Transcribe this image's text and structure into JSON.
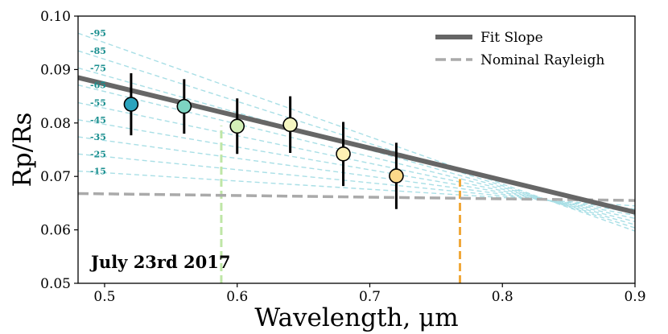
{
  "chart_data": {
    "type": "scatter",
    "title": "",
    "xlabel": "Wavelength, μm",
    "ylabel": "Rp/Rs",
    "xlim": [
      0.48,
      0.9
    ],
    "ylim": [
      0.05,
      0.1
    ],
    "xticks": [
      0.5,
      0.6,
      0.7,
      0.8,
      0.9
    ],
    "xtick_labels": [
      "0.5",
      "0.6",
      "0.7",
      "0.8",
      "0.9"
    ],
    "yticks": [
      0.05,
      0.06,
      0.07,
      0.08,
      0.09,
      0.1
    ],
    "ytick_labels": [
      "0.05",
      "0.06",
      "0.07",
      "0.08",
      "0.09",
      "0.10"
    ],
    "annotation": "July 23rd 2017",
    "legend": {
      "location": "top-right",
      "entries": [
        "Fit Slope",
        "Nominal Rayleigh"
      ]
    },
    "points": [
      {
        "x": 0.52,
        "y": 0.0835,
        "yerr": 0.0058,
        "color": "#2aa3bd"
      },
      {
        "x": 0.56,
        "y": 0.0831,
        "yerr": 0.0051,
        "color": "#7dd4c2"
      },
      {
        "x": 0.6,
        "y": 0.0794,
        "yerr": 0.0052,
        "color": "#d3efb8"
      },
      {
        "x": 0.64,
        "y": 0.0797,
        "yerr": 0.0053,
        "color": "#f5f6c2"
      },
      {
        "x": 0.68,
        "y": 0.0742,
        "yerr": 0.006,
        "color": "#fff2b5"
      },
      {
        "x": 0.72,
        "y": 0.0701,
        "yerr": 0.0062,
        "color": "#fcd98a"
      }
    ],
    "fit_slope": {
      "name": "Fit Slope",
      "x": [
        0.48,
        0.9
      ],
      "y": [
        0.0885,
        0.0633
      ],
      "color": "#666666"
    },
    "nominal_rayleigh": {
      "name": "Nominal Rayleigh",
      "x": [
        0.48,
        0.9
      ],
      "y": [
        0.0668,
        0.0655
      ],
      "color": "#aaaaaa"
    },
    "slope_family": {
      "pivot": {
        "x": 0.835,
        "y": 0.0655
      },
      "labels": [
        "-95",
        "-85",
        "-75",
        "-65",
        "-55",
        "-45",
        "-35",
        "-25",
        "-15"
      ],
      "start_y": [
        0.0968,
        0.0935,
        0.0903,
        0.0871,
        0.0838,
        0.0806,
        0.0774,
        0.0742,
        0.071
      ],
      "color": "#a9dfe6"
    },
    "vertical_lines": [
      {
        "x": 0.588,
        "color": "#bfe6a6"
      },
      {
        "x": 0.768,
        "color": "#f0a83a"
      }
    ]
  }
}
